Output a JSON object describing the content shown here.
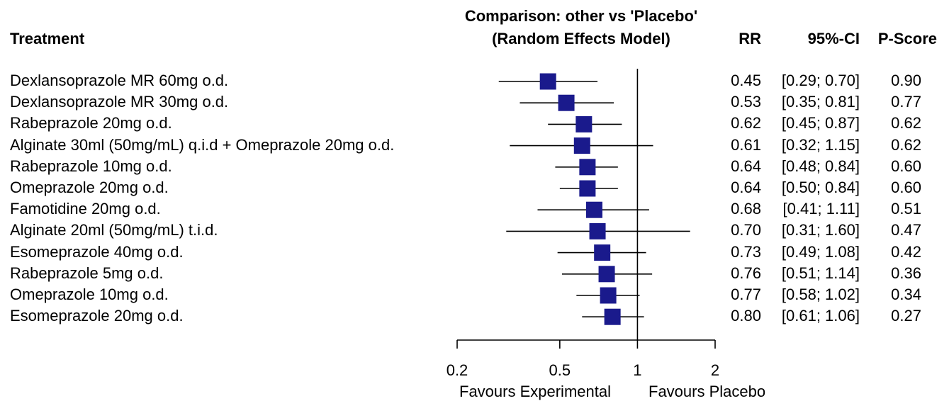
{
  "header": {
    "treatment": "Treatment",
    "title_line1": "Comparison: other vs 'Placebo'",
    "title_line2": "(Random Effects Model)",
    "rr": "RR",
    "ci": "95%-CI",
    "pscore": "P-Score"
  },
  "footer": {
    "favours_left": "Favours Experimental",
    "favours_right": "Favours Placebo"
  },
  "colors": {
    "square": "#1a1a8c",
    "line": "#000000"
  },
  "chart_data": {
    "type": "forest",
    "x_scale": "log",
    "xlim": [
      0.2,
      2
    ],
    "ticks": [
      0.2,
      0.5,
      1,
      2
    ],
    "tick_labels": [
      "0.2",
      "0.5",
      "1",
      "2"
    ],
    "reference_line": 1,
    "rows": [
      {
        "treatment": "Dexlansoprazole MR 60mg o.d.",
        "rr": 0.45,
        "lo": 0.29,
        "hi": 0.7,
        "rr_text": "0.45",
        "ci_text": "[0.29; 0.70]",
        "pscore": "0.90"
      },
      {
        "treatment": "Dexlansoprazole MR 30mg o.d.",
        "rr": 0.53,
        "lo": 0.35,
        "hi": 0.81,
        "rr_text": "0.53",
        "ci_text": "[0.35; 0.81]",
        "pscore": "0.77"
      },
      {
        "treatment": "Rabeprazole 20mg o.d.",
        "rr": 0.62,
        "lo": 0.45,
        "hi": 0.87,
        "rr_text": "0.62",
        "ci_text": "[0.45; 0.87]",
        "pscore": "0.62"
      },
      {
        "treatment": "Alginate 30ml (50mg/mL) q.i.d + Omeprazole 20mg o.d.",
        "rr": 0.61,
        "lo": 0.32,
        "hi": 1.15,
        "rr_text": "0.61",
        "ci_text": "[0.32; 1.15]",
        "pscore": "0.62"
      },
      {
        "treatment": "Rabeprazole 10mg o.d.",
        "rr": 0.64,
        "lo": 0.48,
        "hi": 0.84,
        "rr_text": "0.64",
        "ci_text": "[0.48; 0.84]",
        "pscore": "0.60"
      },
      {
        "treatment": "Omeprazole 20mg o.d.",
        "rr": 0.64,
        "lo": 0.5,
        "hi": 0.84,
        "rr_text": "0.64",
        "ci_text": "[0.50; 0.84]",
        "pscore": "0.60"
      },
      {
        "treatment": "Famotidine 20mg o.d.",
        "rr": 0.68,
        "lo": 0.41,
        "hi": 1.11,
        "rr_text": "0.68",
        "ci_text": "[0.41; 1.11]",
        "pscore": "0.51"
      },
      {
        "treatment": "Alginate 20ml (50mg/mL) t.i.d.",
        "rr": 0.7,
        "lo": 0.31,
        "hi": 1.6,
        "rr_text": "0.70",
        "ci_text": "[0.31; 1.60]",
        "pscore": "0.47"
      },
      {
        "treatment": "Esomeprazole 40mg o.d.",
        "rr": 0.73,
        "lo": 0.49,
        "hi": 1.08,
        "rr_text": "0.73",
        "ci_text": "[0.49; 1.08]",
        "pscore": "0.42"
      },
      {
        "treatment": "Rabeprazole 5mg o.d.",
        "rr": 0.76,
        "lo": 0.51,
        "hi": 1.14,
        "rr_text": "0.76",
        "ci_text": "[0.51; 1.14]",
        "pscore": "0.36"
      },
      {
        "treatment": "Omeprazole 10mg o.d.",
        "rr": 0.77,
        "lo": 0.58,
        "hi": 1.02,
        "rr_text": "0.77",
        "ci_text": "[0.58; 1.02]",
        "pscore": "0.34"
      },
      {
        "treatment": "Esomeprazole 20mg o.d.",
        "rr": 0.8,
        "lo": 0.61,
        "hi": 1.06,
        "rr_text": "0.80",
        "ci_text": "[0.61; 1.06]",
        "pscore": "0.27"
      }
    ]
  }
}
